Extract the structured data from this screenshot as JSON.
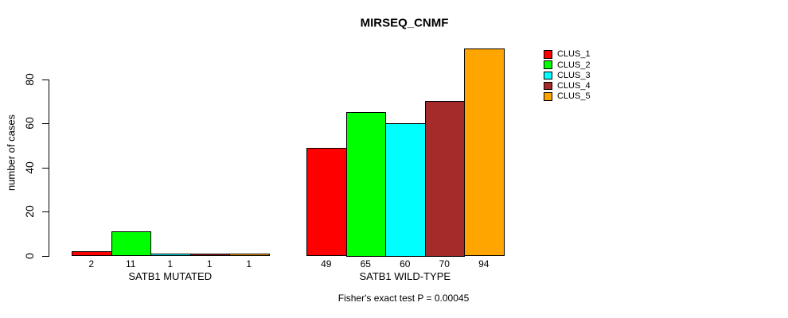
{
  "chart_data": {
    "type": "bar",
    "title": "MIRSEQ_CNMF",
    "ylabel": "number of cases",
    "xlabel": "",
    "categories": [
      "SATB1 MUTATED",
      "SATB1 WILD-TYPE"
    ],
    "series": [
      {
        "name": "CLUS_1",
        "color": "#FF0000",
        "values": [
          2,
          49
        ]
      },
      {
        "name": "CLUS_2",
        "color": "#00FF00",
        "values": [
          11,
          65
        ]
      },
      {
        "name": "CLUS_3",
        "color": "#00FFFF",
        "values": [
          1,
          60
        ]
      },
      {
        "name": "CLUS_4",
        "color": "#A52A2A",
        "values": [
          1,
          70
        ]
      },
      {
        "name": "CLUS_5",
        "color": "#FFA500",
        "values": [
          1,
          94
        ]
      }
    ],
    "y_ticks": [
      "0",
      "20",
      "40",
      "60",
      "80"
    ],
    "ylim": [
      0,
      94
    ],
    "grid": false,
    "bar_value_labels_shown": true,
    "legend_position": "right",
    "annotation": "Fisher's exact test P = 0.00045"
  }
}
